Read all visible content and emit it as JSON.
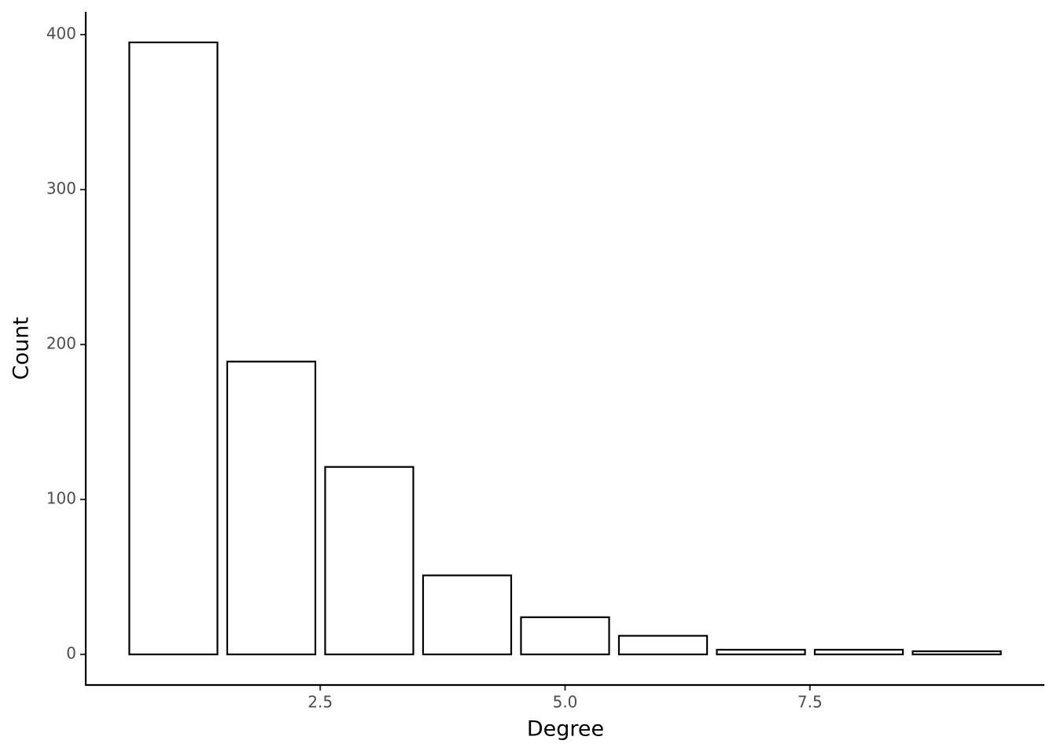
{
  "chart_data": {
    "type": "bar",
    "x": [
      1,
      2,
      3,
      4,
      5,
      6,
      7,
      8,
      9
    ],
    "values": [
      395,
      189,
      121,
      51,
      24,
      12,
      3,
      3,
      2
    ],
    "color": "#ffffff",
    "edgecolor": "#000000",
    "xlabel": "Degree",
    "ylabel": "Count",
    "xlim": [
      0.105,
      9.895
    ],
    "xticks": [
      2.5,
      {
        "value": 5,
        "label": "5.0"
      },
      7.5
    ],
    "ylim": [
      -19.75,
      414.75
    ],
    "yticks": [
      0,
      100,
      200,
      300,
      400
    ],
    "grid": false
  }
}
